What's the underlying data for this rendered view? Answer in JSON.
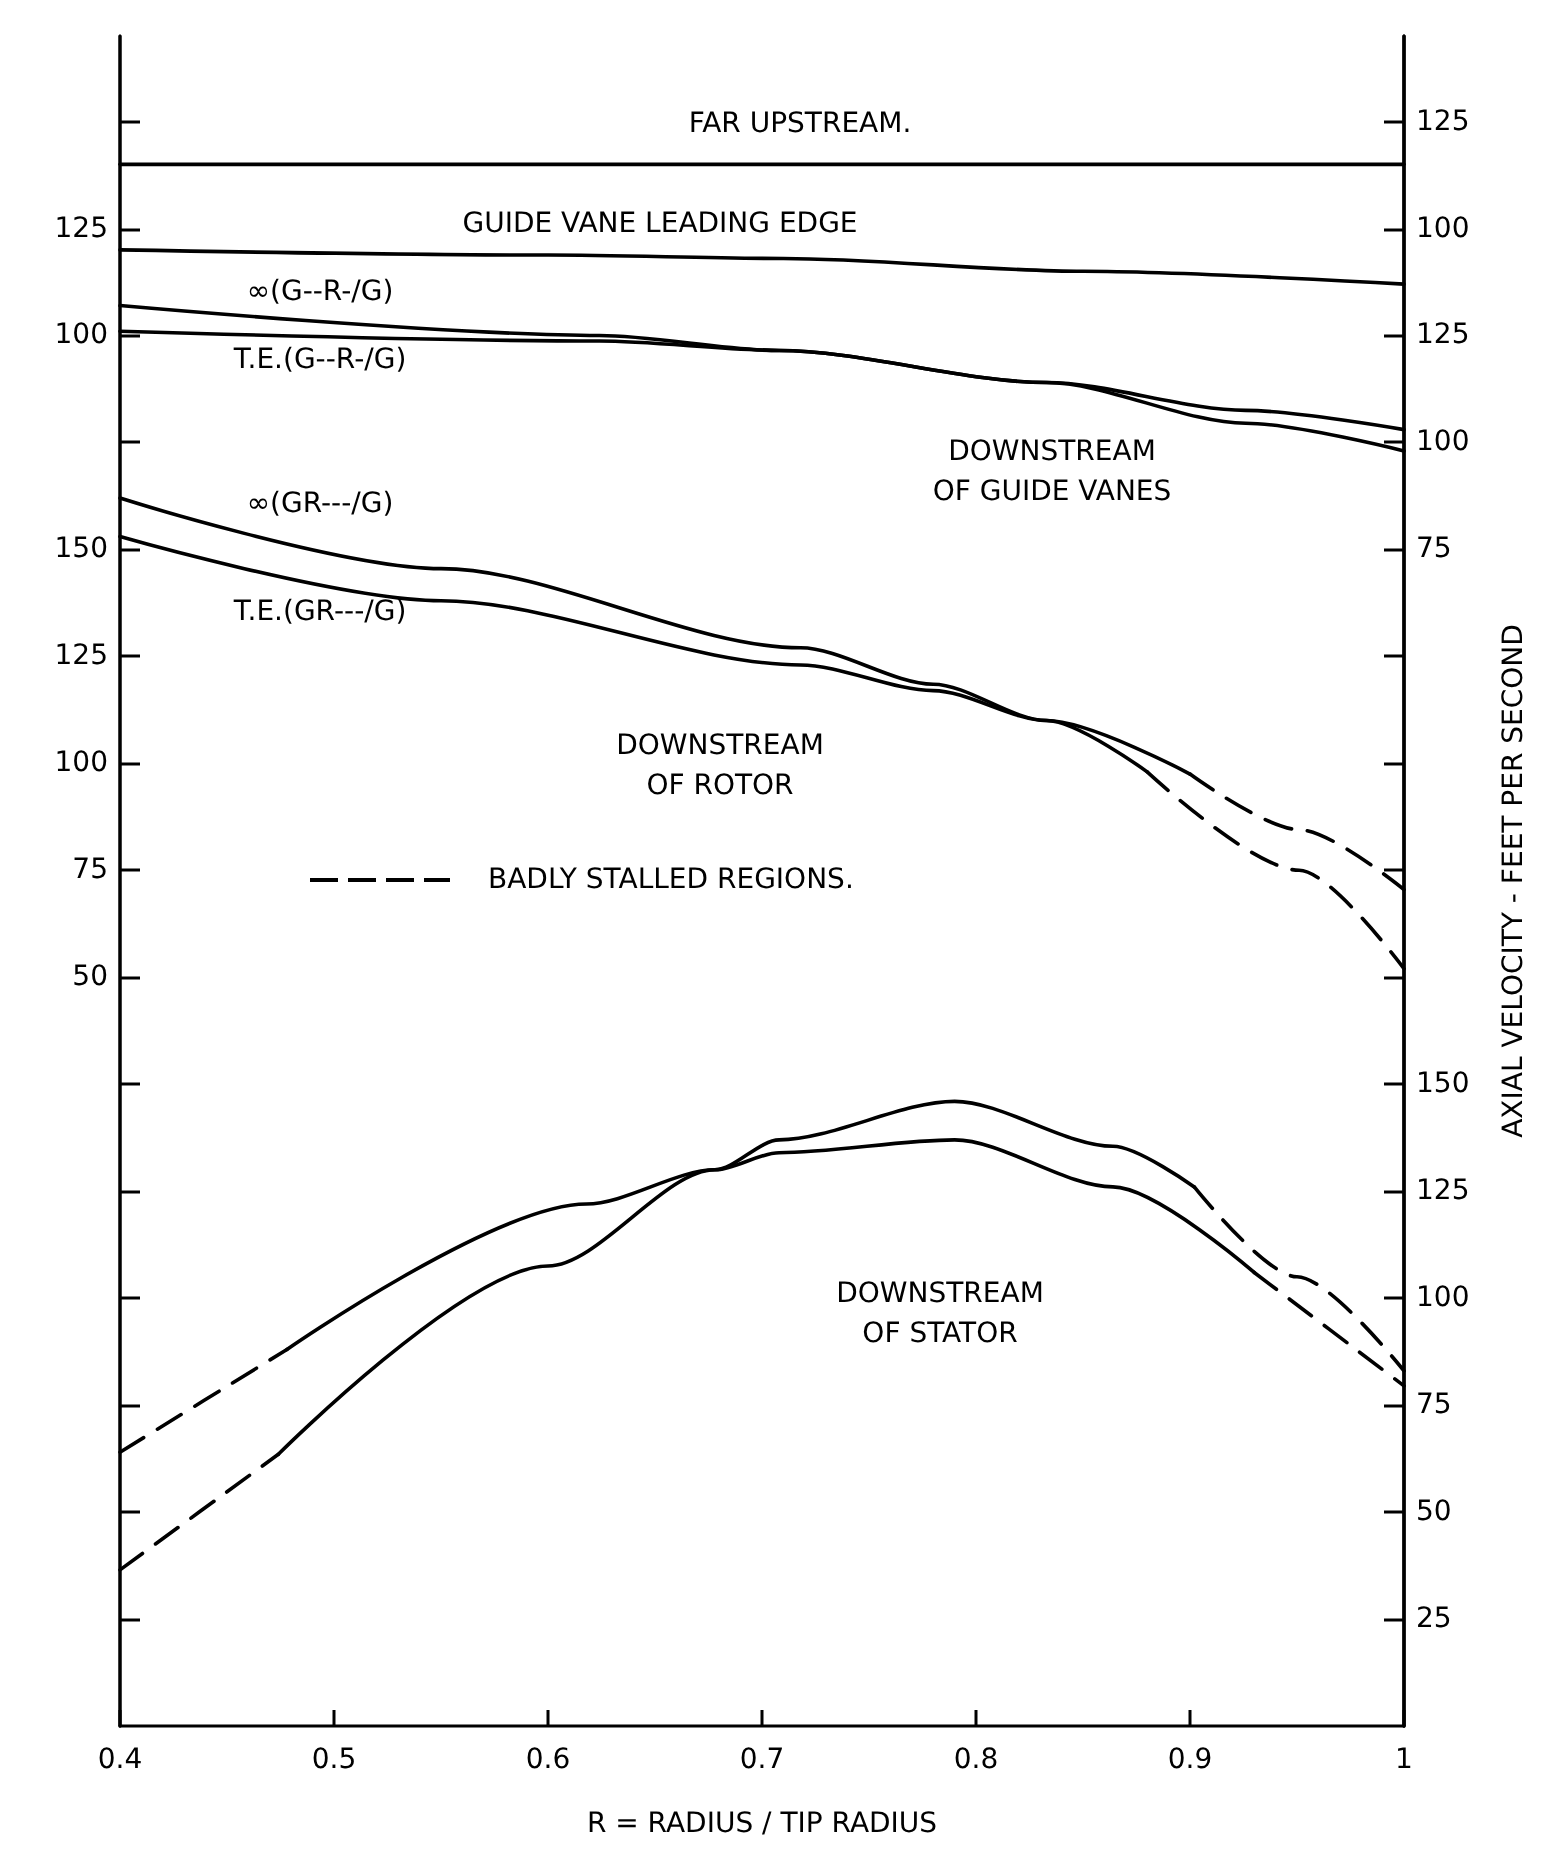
{
  "chart_data": [
    {
      "type": "line",
      "xlim": [
        0.4,
        1.0
      ],
      "xticks": [
        0.4,
        0.5,
        0.6,
        0.7,
        0.8,
        0.9,
        1.0
      ],
      "tick_labels": "y",
      "ylim": [
        -225,
        170
      ],
      "yticks": [
        125,
        100
      ],
      "y2lim": [
        -250,
        145
      ],
      "y2ticks": [
        125,
        100
      ],
      "grid": false,
      "marker": "none",
      "series": [
        {
          "axis": "y2",
          "color": "#000000",
          "line_style": "solid",
          "x": [
            0.4,
            0.7,
            1.0
          ],
          "values": [
            115,
            115,
            115
          ]
        },
        {
          "color": "#000000",
          "line_style": "solid",
          "x": [
            0.4,
            0.6,
            0.71,
            0.85,
            1.0
          ],
          "values": [
            120,
            118.8,
            118,
            115,
            112
          ]
        }
      ],
      "annotations": [
        "FAR UPSTREAM.",
        "GUIDE VANE LEADING EDGE",
        "∞(G--R-/G)",
        "T.E.(G--R-/G)",
        "DOWNSTREAM\nOF GUIDE VANES"
      ]
    },
    {
      "type": "line",
      "xlim": [
        0.4,
        1.0
      ],
      "xticks": [
        0.4,
        0.5,
        0.6,
        0.7,
        0.8,
        0.9,
        1.0
      ],
      "tick_labels": "y",
      "y2lim": [
        -200,
        195
      ],
      "y2ticks": [
        125,
        100,
        75
      ],
      "grid": false,
      "marker": "none",
      "series": [
        {
          "axis": "y2",
          "color": "#000000",
          "line_style": "solid",
          "x": [
            0.4,
            0.624,
            0.708,
            0.833,
            0.926,
            1.0
          ],
          "values": [
            132,
            125,
            121.5,
            114,
            107.5,
            103
          ]
        },
        {
          "axis": "y2",
          "color": "#000000",
          "line_style": "solid",
          "x": [
            0.4,
            0.624,
            0.708,
            0.833,
            0.926,
            1.0
          ],
          "values": [
            126,
            123.7,
            121.5,
            114,
            104.5,
            98
          ]
        }
      ]
    },
    {
      "type": "line",
      "xlabel": "R = RADIUS / TIP RADIUS",
      "y2label": "AXIAL VELOCITY - FEET PER SECOND",
      "xlim": [
        0.4,
        1.0
      ],
      "xticks": [
        0.4,
        0.5,
        0.6,
        0.7,
        0.8,
        0.9,
        1.0
      ],
      "ylim": [
        -125,
        270
      ],
      "yticks": [
        {
          "value": 250,
          "label": null
        },
        {
          "value": 175,
          "label": null
        },
        150,
        125,
        100,
        75,
        50,
        {
          "value": 25,
          "label": null
        },
        {
          "value": 0,
          "label": null
        },
        {
          "value": -25,
          "label": null
        },
        {
          "value": -50,
          "label": null
        },
        {
          "value": -75,
          "label": null
        },
        {
          "value": -100,
          "label": null
        }
      ],
      "y2lim": [
        0,
        395
      ],
      "y2ticks": [
        {
          "value": 250,
          "label": null
        },
        {
          "value": 225,
          "label": null
        },
        {
          "value": 200,
          "label": null
        },
        {
          "value": 175,
          "label": null
        },
        150,
        125,
        100,
        75,
        50,
        25
      ],
      "grid": false,
      "marker": "none",
      "legend": "left",
      "series": [
        {
          "color": "#000000",
          "line_style": "solid",
          "x": [
            0.4,
            0.55,
            0.718,
            0.78,
            0.833,
            0.9
          ],
          "values": [
            162,
            145.5,
            127,
            118.5,
            110,
            97.5
          ]
        },
        {
          "name": "BADLY STALLED REGIONS.",
          "color": "#000000",
          "line_style": "dashed",
          "x": [
            0.9,
            0.951,
            1.0
          ],
          "values": [
            97.5,
            84.5,
            70.5
          ]
        },
        {
          "color": "#000000",
          "line_style": "solid",
          "x": [
            0.4,
            0.55,
            0.718,
            0.78,
            0.833,
            0.88
          ],
          "values": [
            153,
            138,
            123,
            117,
            110,
            98
          ]
        },
        {
          "color": "#000000",
          "line_style": "dashed",
          "x": [
            0.88,
            0.951,
            1.0
          ],
          "values": [
            98,
            75,
            52
          ]
        },
        {
          "axis": "y2",
          "color": "#000000",
          "line_style": "dashed",
          "x": [
            0.4,
            0.478
          ],
          "values": [
            64,
            88
          ]
        },
        {
          "axis": "y2",
          "color": "#000000",
          "line_style": "solid",
          "x": [
            0.478,
            0.618,
            0.678,
            0.708,
            0.79,
            0.864,
            0.93
          ],
          "values": [
            88,
            122,
            130,
            134,
            137,
            126,
            106
          ]
        },
        {
          "axis": "y2",
          "color": "#000000",
          "line_style": "dashed",
          "x": [
            0.93,
            1.0
          ],
          "values": [
            106,
            79.5
          ]
        },
        {
          "axis": "y2",
          "color": "#000000",
          "line_style": "dashed",
          "x": [
            0.4,
            0.474
          ],
          "values": [
            36.5,
            63.5
          ]
        },
        {
          "axis": "y2",
          "color": "#000000",
          "line_style": "solid",
          "x": [
            0.474,
            0.6,
            0.678,
            0.708,
            0.79,
            0.864,
            0.902
          ],
          "values": [
            63.5,
            107.5,
            130,
            137,
            146,
            135.5,
            126
          ]
        },
        {
          "axis": "y2",
          "color": "#000000",
          "line_style": "dashed",
          "x": [
            0.902,
            0.95,
            1.0
          ],
          "values": [
            126,
            105,
            83
          ]
        }
      ],
      "annotations": [
        "∞(GR---/G)",
        "T.E.(GR---/G)",
        "DOWNSTREAM\nOF ROTOR",
        "DOWNSTREAM\nOF STATOR"
      ]
    }
  ]
}
